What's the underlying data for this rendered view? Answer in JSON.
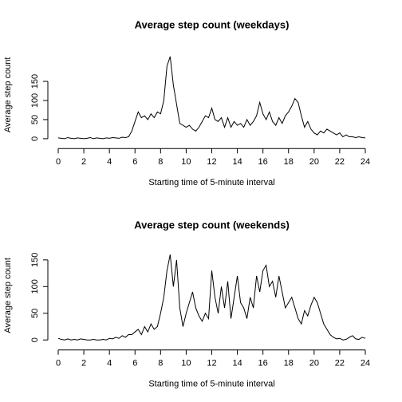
{
  "chart_data": [
    {
      "type": "line",
      "title": "Average step count (weekdays)",
      "xlabel": "Starting time of 5-minute interval",
      "ylabel": "Average step count",
      "color": "#000000",
      "x": [
        0,
        0.25,
        0.5,
        0.75,
        1,
        1.25,
        1.5,
        1.75,
        2,
        2.25,
        2.5,
        2.75,
        3,
        3.25,
        3.5,
        3.75,
        4,
        4.25,
        4.5,
        4.75,
        5,
        5.25,
        5.5,
        5.75,
        6,
        6.25,
        6.5,
        6.75,
        7,
        7.25,
        7.5,
        7.75,
        8,
        8.25,
        8.5,
        8.75,
        9,
        9.25,
        9.5,
        9.75,
        10,
        10.25,
        10.5,
        10.75,
        11,
        11.25,
        11.5,
        11.75,
        12,
        12.25,
        12.5,
        12.75,
        13,
        13.25,
        13.5,
        13.75,
        14,
        14.25,
        14.5,
        14.75,
        15,
        15.25,
        15.5,
        15.75,
        16,
        16.25,
        16.5,
        16.75,
        17,
        17.25,
        17.5,
        17.75,
        18,
        18.25,
        18.5,
        18.75,
        19,
        19.25,
        19.5,
        19.75,
        20,
        20.25,
        20.5,
        20.75,
        21,
        21.25,
        21.5,
        21.75,
        22,
        22.25,
        22.5,
        22.75,
        23,
        23.25,
        23.5,
        23.75,
        24
      ],
      "values": [
        2,
        1,
        0,
        3,
        1,
        0,
        2,
        1,
        0,
        1,
        3,
        0,
        2,
        1,
        0,
        2,
        1,
        3,
        2,
        1,
        4,
        3,
        5,
        20,
        45,
        70,
        55,
        60,
        50,
        65,
        55,
        70,
        65,
        100,
        190,
        215,
        140,
        90,
        40,
        35,
        30,
        35,
        25,
        20,
        30,
        45,
        60,
        55,
        80,
        50,
        45,
        55,
        30,
        55,
        30,
        45,
        35,
        40,
        30,
        50,
        35,
        45,
        60,
        95,
        65,
        50,
        70,
        45,
        35,
        55,
        40,
        60,
        70,
        85,
        105,
        95,
        60,
        30,
        45,
        25,
        15,
        10,
        20,
        15,
        25,
        20,
        15,
        10,
        15,
        5,
        10,
        5,
        5,
        3,
        5,
        3,
        2
      ],
      "xlim": [
        -0.96,
        24.96
      ],
      "ylim": [
        -9.2,
        239.2
      ],
      "xticks": [
        0,
        2,
        4,
        6,
        8,
        10,
        12,
        14,
        16,
        18,
        20,
        22,
        24
      ],
      "yticks": [
        0,
        50,
        100,
        150
      ]
    },
    {
      "type": "line",
      "title": "Average step count (weekends)",
      "xlabel": "Starting time of 5-minute interval",
      "ylabel": "Average step count",
      "color": "#000000",
      "x": [
        0,
        0.25,
        0.5,
        0.75,
        1,
        1.25,
        1.5,
        1.75,
        2,
        2.25,
        2.5,
        2.75,
        3,
        3.25,
        3.5,
        3.75,
        4,
        4.25,
        4.5,
        4.75,
        5,
        5.25,
        5.5,
        5.75,
        6,
        6.25,
        6.5,
        6.75,
        7,
        7.25,
        7.5,
        7.75,
        8,
        8.25,
        8.5,
        8.75,
        9,
        9.25,
        9.5,
        9.75,
        10,
        10.25,
        10.5,
        10.75,
        11,
        11.25,
        11.5,
        11.75,
        12,
        12.25,
        12.5,
        12.75,
        13,
        13.25,
        13.5,
        13.75,
        14,
        14.25,
        14.5,
        14.75,
        15,
        15.25,
        15.5,
        15.75,
        16,
        16.25,
        16.5,
        16.75,
        17,
        17.25,
        17.5,
        17.75,
        18,
        18.25,
        18.5,
        18.75,
        19,
        19.25,
        19.5,
        19.75,
        20,
        20.25,
        20.5,
        20.75,
        21,
        21.25,
        21.5,
        21.75,
        22,
        22.25,
        22.5,
        22.75,
        23,
        23.25,
        23.5,
        23.75,
        24
      ],
      "values": [
        3,
        1,
        0,
        2,
        0,
        1,
        0,
        2,
        1,
        0,
        0,
        1,
        0,
        0,
        1,
        0,
        3,
        2,
        5,
        3,
        8,
        5,
        10,
        10,
        15,
        20,
        10,
        25,
        15,
        30,
        20,
        25,
        50,
        80,
        130,
        160,
        100,
        150,
        60,
        25,
        50,
        70,
        90,
        60,
        45,
        35,
        50,
        40,
        130,
        80,
        50,
        100,
        60,
        110,
        40,
        80,
        120,
        70,
        60,
        40,
        80,
        60,
        120,
        90,
        130,
        140,
        100,
        110,
        80,
        120,
        90,
        60,
        70,
        80,
        60,
        40,
        30,
        55,
        45,
        65,
        80,
        70,
        50,
        30,
        20,
        10,
        5,
        2,
        3,
        0,
        1,
        5,
        8,
        2,
        1,
        5,
        3
      ],
      "xlim": [
        -0.96,
        24.96
      ],
      "ylim": [
        -6.7,
        173.7
      ],
      "xticks": [
        0,
        2,
        4,
        6,
        8,
        10,
        12,
        14,
        16,
        18,
        20,
        22,
        24
      ],
      "yticks": [
        0,
        50,
        100,
        150
      ]
    }
  ]
}
